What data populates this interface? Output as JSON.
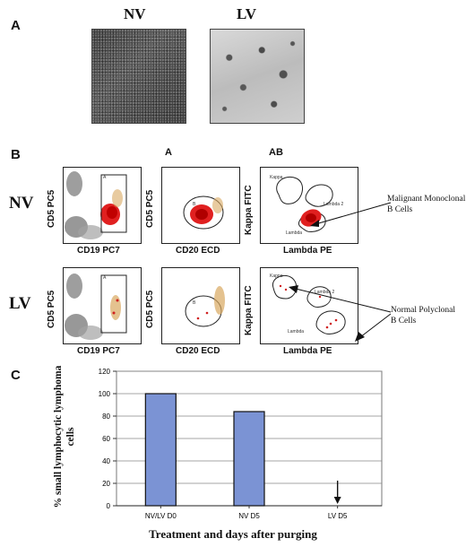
{
  "panel_a": {
    "letter": "A",
    "nv_label": "NV",
    "lv_label": "LV"
  },
  "panel_b": {
    "letter": "B",
    "col_a": "A",
    "col_ab": "AB",
    "row_nv": "NV",
    "row_lv": "LV",
    "plot1": {
      "xlabel": "CD19 PC7",
      "ylabel": "CD5 PC5",
      "gate": "A"
    },
    "plot2": {
      "xlabel": "CD20 ECD",
      "ylabel": "CD5 PC5",
      "gate": "B"
    },
    "plot3": {
      "xlabel": "Lambda PE",
      "ylabel": "Kappa FITC",
      "gate_kappa": "Kappa",
      "gate_lambda2": "Lambda 2",
      "gate_lambda": "Lambda"
    },
    "annotation_malignant": "Malignant Monoclonal B Cells",
    "annotation_normal": "Normal Polyclonal B Cells"
  },
  "panel_c": {
    "letter": "C",
    "chart_data": {
      "type": "bar",
      "categories": [
        "NV/LV D0",
        "NV D5",
        "LV D5"
      ],
      "values": [
        100,
        84,
        0
      ],
      "ylabel": "% small lymphocytic lymphoma cells",
      "xlabel": "Treatment and days after purging",
      "ylim": [
        0,
        120
      ],
      "yticks": [
        0,
        20,
        40,
        60,
        80,
        100,
        120
      ],
      "grid": true,
      "bar_color": "#7b93d4",
      "arrow_at": "LV D5"
    }
  }
}
